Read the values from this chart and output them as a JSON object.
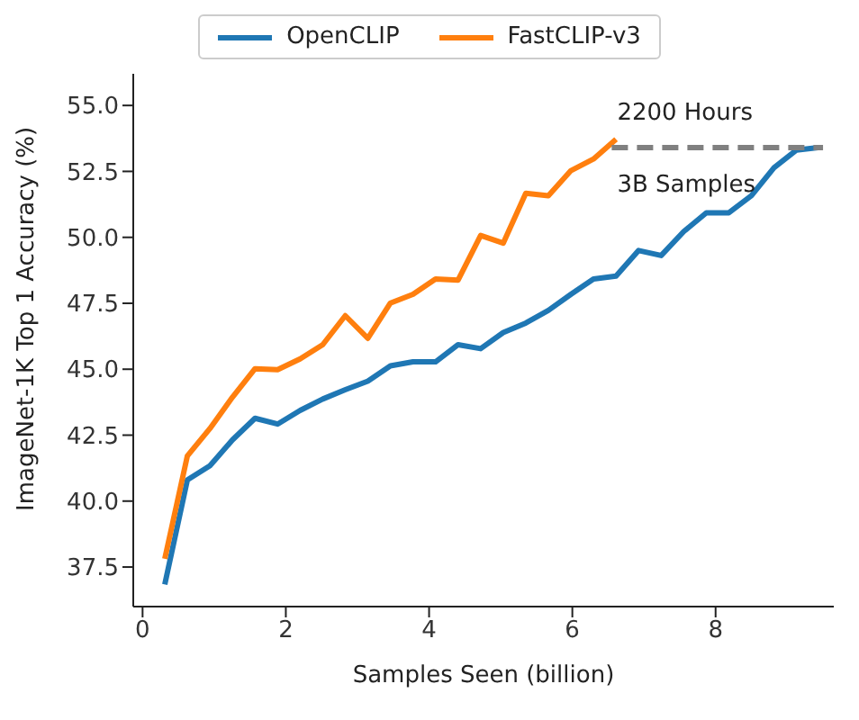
{
  "chart_data": {
    "type": "line",
    "xlabel": "Samples Seen (billion)",
    "ylabel": "ImageNet-1K Top 1 Accuracy (%)",
    "xlim": [
      -0.13,
      9.65
    ],
    "ylim": [
      36,
      56.2
    ],
    "xticks": [
      0,
      2,
      4,
      6,
      8
    ],
    "yticks": [
      {
        "value": 37.5,
        "label": "37.5"
      },
      {
        "value": 40,
        "label": "40.0"
      },
      {
        "value": 42.5,
        "label": "42.5"
      },
      {
        "value": 45,
        "label": "45.0"
      },
      {
        "value": 47.5,
        "label": "47.5"
      },
      {
        "value": 50,
        "label": "50.0"
      },
      {
        "value": 52.5,
        "label": "52.5"
      },
      {
        "value": 55,
        "label": "55.0"
      }
    ],
    "legend": "top",
    "grid": false,
    "line_style": "solid",
    "series": [
      {
        "name": "OpenCLIP",
        "color": "#1f77b4",
        "x": [
          0.31,
          0.625,
          0.94,
          1.255,
          1.57,
          1.885,
          2.2,
          2.515,
          2.83,
          3.145,
          3.46,
          3.775,
          4.09,
          4.405,
          4.72,
          5.035,
          5.35,
          5.665,
          5.98,
          6.295,
          6.61,
          6.925,
          7.24,
          7.555,
          7.87,
          8.185,
          8.5,
          8.815,
          9.13,
          9.43
        ],
        "values": [
          36.84,
          40.8,
          41.34,
          42.32,
          43.14,
          42.92,
          43.44,
          43.87,
          44.22,
          44.55,
          45.13,
          45.28,
          45.28,
          45.93,
          45.78,
          46.39,
          46.75,
          47.23,
          47.84,
          48.42,
          48.53,
          49.5,
          49.31,
          50.22,
          50.93,
          50.93,
          51.58,
          52.64,
          53.31,
          53.4
        ]
      },
      {
        "name": "FastCLIP-v3",
        "color": "#ff7f0e",
        "x": [
          0.31,
          0.625,
          0.94,
          1.255,
          1.57,
          1.885,
          2.2,
          2.515,
          2.83,
          3.145,
          3.46,
          3.775,
          4.09,
          4.405,
          4.72,
          5.035,
          5.35,
          5.665,
          5.98,
          6.295,
          6.61
        ],
        "values": [
          37.81,
          41.71,
          42.75,
          43.94,
          45.02,
          44.98,
          45.39,
          45.93,
          47.03,
          46.17,
          47.51,
          47.84,
          48.42,
          48.38,
          50.07,
          49.78,
          51.67,
          51.58,
          52.53,
          52.97,
          53.72
        ]
      },
      {
        "color": "#808080",
        "line_style": "dashed",
        "x": [
          6.55,
          9.5
        ],
        "values": [
          53.4,
          53.4
        ]
      }
    ],
    "annotations": [
      "2200 Hours",
      "3B Samples"
    ]
  }
}
